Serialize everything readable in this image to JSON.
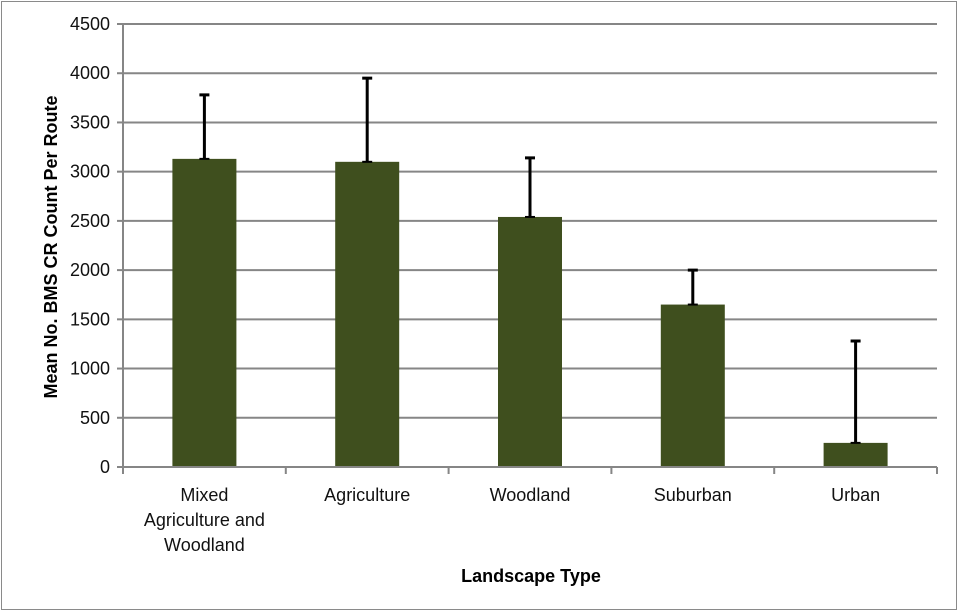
{
  "chart_data": {
    "type": "bar",
    "title": "",
    "xlabel": "Landscape Type",
    "ylabel": "Mean No. BMS CR Count Per Route",
    "categories": [
      "Mixed Agriculture and Woodland",
      "Agriculture",
      "Woodland",
      "Suburban",
      "Urban"
    ],
    "category_lines": [
      [
        "Mixed",
        "Agriculture and",
        "Woodland"
      ],
      [
        "Agriculture"
      ],
      [
        "Woodland"
      ],
      [
        "Suburban"
      ],
      [
        "Urban"
      ]
    ],
    "values": [
      3130,
      3100,
      2540,
      1650,
      245
    ],
    "error_upper": [
      650,
      850,
      600,
      350,
      1035
    ],
    "ylim": [
      0,
      4500
    ],
    "yticks": [
      0,
      500,
      1000,
      1500,
      2000,
      2500,
      3000,
      3500,
      4000,
      4500
    ],
    "grid": true,
    "legend": "none",
    "bar_color": "#3f4f1e",
    "grid_color": "#868686",
    "error_bar_color": "#000000"
  }
}
